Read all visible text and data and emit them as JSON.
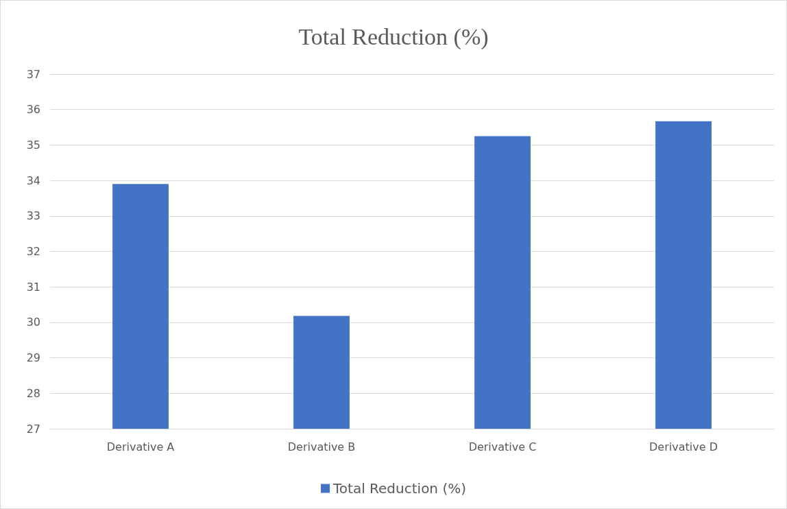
{
  "chart_data": {
    "type": "bar",
    "title": "Total Reduction (%)",
    "categories": [
      "Derivative A",
      "Derivative B",
      "Derivative C",
      "Derivative D"
    ],
    "series": [
      {
        "name": "Total Reduction (%)",
        "color": "#4472c4",
        "values": [
          33.9,
          30.18,
          35.25,
          35.67
        ]
      }
    ],
    "ylim": [
      27,
      37
    ],
    "yticks": [
      27,
      28,
      29,
      30,
      31,
      32,
      33,
      34,
      35,
      36,
      37
    ],
    "grid": "y",
    "legend": "bottom"
  }
}
